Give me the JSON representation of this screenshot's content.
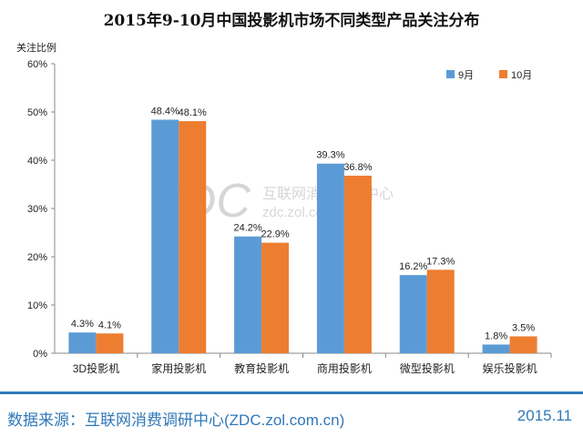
{
  "chart_data": {
    "type": "bar",
    "title": "2015年9-10月中国投影机市场不同类型产品关注分布",
    "ylabel": "关注比例",
    "xlabel": "",
    "ylim": [
      0,
      60
    ],
    "yticks": [
      "0%",
      "10%",
      "20%",
      "30%",
      "40%",
      "50%",
      "60%"
    ],
    "categories": [
      "3D投影机",
      "家用投影机",
      "教育投影机",
      "商用投影机",
      "微型投影机",
      "娱乐投影机"
    ],
    "series": [
      {
        "name": "9月",
        "color": "#5b9bd5",
        "values": [
          4.3,
          48.4,
          24.2,
          39.3,
          16.2,
          1.8
        ],
        "labels": [
          "4.3%",
          "48.4%",
          "24.2%",
          "39.3%",
          "16.2%",
          "1.8%"
        ]
      },
      {
        "name": "10月",
        "color": "#ed7d31",
        "values": [
          4.1,
          48.1,
          22.9,
          36.8,
          17.3,
          3.5
        ],
        "labels": [
          "4.1%",
          "48.1%",
          "22.9%",
          "36.8%",
          "17.3%",
          "3.5%"
        ]
      }
    ],
    "legend_position": "top-right",
    "grid": false
  },
  "watermark": {
    "logo": "ZDC",
    "name": "互联网消费调研中心",
    "url": "zdc.zol.com.cn"
  },
  "footer": {
    "source": "数据来源：互联网消费调研中心(ZDC.zol.com.cn)",
    "date": "2015.11"
  }
}
